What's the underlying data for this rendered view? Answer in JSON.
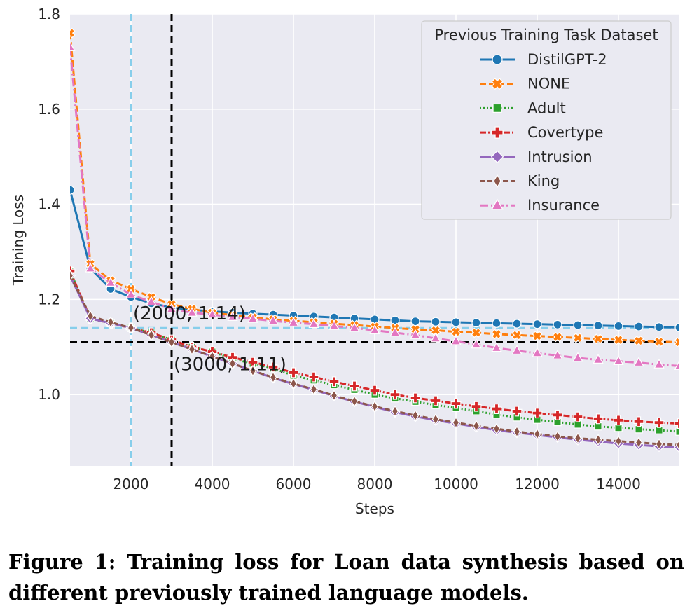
{
  "chart_data": {
    "type": "line",
    "xlabel": "Steps",
    "ylabel": "Training Loss",
    "xlim": [
      500,
      15500
    ],
    "ylim": [
      0.85,
      1.8
    ],
    "xticks": [
      2000,
      4000,
      6000,
      8000,
      10000,
      12000,
      14000
    ],
    "yticks": [
      1.0,
      1.2,
      1.4,
      1.6,
      1.8
    ],
    "xtick_labels": [
      "2000",
      "4000",
      "6000",
      "8000",
      "10000",
      "12000",
      "14000"
    ],
    "ytick_labels": [
      "1.0",
      "1.2",
      "1.4",
      "1.6",
      "1.8"
    ],
    "grid": true,
    "background": "#eaeaf2",
    "legend": {
      "title": "Previous Training Task Dataset",
      "placement": "top-right"
    },
    "x": [
      500,
      1000,
      1500,
      2000,
      2500,
      3000,
      3500,
      4000,
      4500,
      5000,
      5500,
      6000,
      6500,
      7000,
      7500,
      8000,
      8500,
      9000,
      9500,
      10000,
      10500,
      11000,
      11500,
      12000,
      12500,
      13000,
      13500,
      14000,
      14500,
      15000,
      15500
    ],
    "series": [
      {
        "name": "DistilGPT-2",
        "color": "#1f77b4",
        "dash": "",
        "marker": "circle",
        "values": [
          1.43,
          1.265,
          1.222,
          1.205,
          1.192,
          1.183,
          1.178,
          1.175,
          1.172,
          1.17,
          1.168,
          1.166,
          1.164,
          1.162,
          1.16,
          1.158,
          1.156,
          1.154,
          1.153,
          1.152,
          1.151,
          1.15,
          1.149,
          1.148,
          1.147,
          1.146,
          1.145,
          1.144,
          1.143,
          1.142,
          1.141
        ]
      },
      {
        "name": "NONE",
        "color": "#ff7f0e",
        "dash": "9,4",
        "marker": "x",
        "values": [
          1.76,
          1.275,
          1.24,
          1.222,
          1.205,
          1.19,
          1.18,
          1.172,
          1.167,
          1.162,
          1.158,
          1.155,
          1.152,
          1.149,
          1.146,
          1.143,
          1.14,
          1.137,
          1.135,
          1.132,
          1.13,
          1.127,
          1.125,
          1.123,
          1.121,
          1.119,
          1.117,
          1.115,
          1.113,
          1.111,
          1.11
        ]
      },
      {
        "name": "Adult",
        "color": "#2ca02c",
        "dash": "2,3",
        "marker": "square",
        "values": [
          1.26,
          1.16,
          1.15,
          1.14,
          1.13,
          1.115,
          1.1,
          1.09,
          1.075,
          1.065,
          1.055,
          1.04,
          1.03,
          1.02,
          1.01,
          1.0,
          0.992,
          0.985,
          0.978,
          0.972,
          0.965,
          0.958,
          0.952,
          0.947,
          0.942,
          0.937,
          0.933,
          0.93,
          0.927,
          0.925,
          0.922
        ]
      },
      {
        "name": "Covertype",
        "color": "#d62728",
        "dash": "9,3,2,3",
        "marker": "plus",
        "values": [
          1.26,
          1.16,
          1.15,
          1.14,
          1.13,
          1.115,
          1.1,
          1.09,
          1.078,
          1.068,
          1.058,
          1.046,
          1.037,
          1.027,
          1.018,
          1.009,
          1.0,
          0.993,
          0.987,
          0.981,
          0.975,
          0.97,
          0.965,
          0.961,
          0.957,
          0.953,
          0.949,
          0.946,
          0.943,
          0.941,
          0.939
        ]
      },
      {
        "name": "Intrusion",
        "color": "#9467bd",
        "dash": "",
        "marker": "diamond",
        "values": [
          1.25,
          1.16,
          1.15,
          1.14,
          1.125,
          1.11,
          1.095,
          1.08,
          1.065,
          1.05,
          1.035,
          1.022,
          1.01,
          0.997,
          0.985,
          0.974,
          0.963,
          0.954,
          0.946,
          0.939,
          0.932,
          0.925,
          0.92,
          0.915,
          0.91,
          0.905,
          0.901,
          0.897,
          0.894,
          0.891,
          0.889
        ]
      },
      {
        "name": "King",
        "color": "#8c564b",
        "dash": "7,4",
        "marker": "thin_diamond",
        "values": [
          1.25,
          1.165,
          1.152,
          1.14,
          1.125,
          1.11,
          1.095,
          1.08,
          1.065,
          1.05,
          1.036,
          1.023,
          1.011,
          0.998,
          0.986,
          0.975,
          0.965,
          0.956,
          0.948,
          0.941,
          0.934,
          0.928,
          0.922,
          0.917,
          0.912,
          0.908,
          0.905,
          0.902,
          0.899,
          0.896,
          0.894
        ]
      },
      {
        "name": "Insurance",
        "color": "#e377c2",
        "dash": "12,4,2,4",
        "marker": "triangle",
        "values": [
          1.73,
          1.265,
          1.235,
          1.21,
          1.195,
          1.18,
          1.172,
          1.168,
          1.163,
          1.159,
          1.155,
          1.151,
          1.148,
          1.144,
          1.14,
          1.135,
          1.13,
          1.125,
          1.118,
          1.112,
          1.105,
          1.098,
          1.092,
          1.087,
          1.082,
          1.077,
          1.073,
          1.07,
          1.067,
          1.063,
          1.06
        ]
      }
    ],
    "reference_lines": [
      {
        "orientation": "vertical",
        "value": 2000,
        "color": "#87ceeb"
      },
      {
        "orientation": "horizontal",
        "value": 1.14,
        "color": "#87ceeb"
      },
      {
        "orientation": "vertical",
        "value": 3000,
        "color": "#000000"
      },
      {
        "orientation": "horizontal",
        "value": 1.11,
        "color": "#000000"
      }
    ],
    "annotations": [
      {
        "text": "(2000, 1.14)",
        "x": 2000,
        "y": 1.14
      },
      {
        "text": "(3000, 1.11)",
        "x": 3000,
        "y": 1.11
      }
    ]
  },
  "caption": "Figure 1: Training loss for Loan data synthesis based on different previously trained language models."
}
